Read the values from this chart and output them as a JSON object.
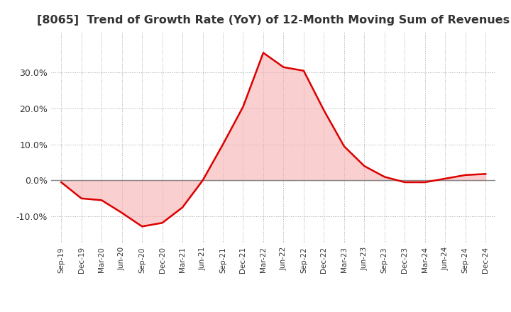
{
  "title": "[8065]  Trend of Growth Rate (YoY) of 12-Month Moving Sum of Revenues",
  "title_fontsize": 11.5,
  "line_color": "#dd0000",
  "fill_color": "#f5b0b0",
  "fill_alpha": 0.6,
  "background_color": "#ffffff",
  "grid_color": "#aaaaaa",
  "zero_line_color": "#888888",
  "x_labels": [
    "Sep-19",
    "Dec-19",
    "Mar-20",
    "Jun-20",
    "Sep-20",
    "Dec-20",
    "Mar-21",
    "Jun-21",
    "Sep-21",
    "Dec-21",
    "Mar-22",
    "Jun-22",
    "Sep-22",
    "Dec-22",
    "Mar-23",
    "Jun-23",
    "Sep-23",
    "Dec-23",
    "Mar-24",
    "Jun-24",
    "Sep-24",
    "Dec-24"
  ],
  "y_values": [
    -0.005,
    -0.05,
    -0.055,
    -0.09,
    -0.128,
    -0.118,
    -0.075,
    0.0,
    0.1,
    0.205,
    0.355,
    0.315,
    0.305,
    0.195,
    0.095,
    0.04,
    0.01,
    -0.005,
    -0.005,
    0.005,
    0.015,
    0.018
  ],
  "ylim": [
    -0.175,
    0.415
  ],
  "yticks": [
    -0.1,
    0.0,
    0.1,
    0.2,
    0.3
  ],
  "tick_fontsize": 9,
  "xtick_fontsize": 7.5
}
